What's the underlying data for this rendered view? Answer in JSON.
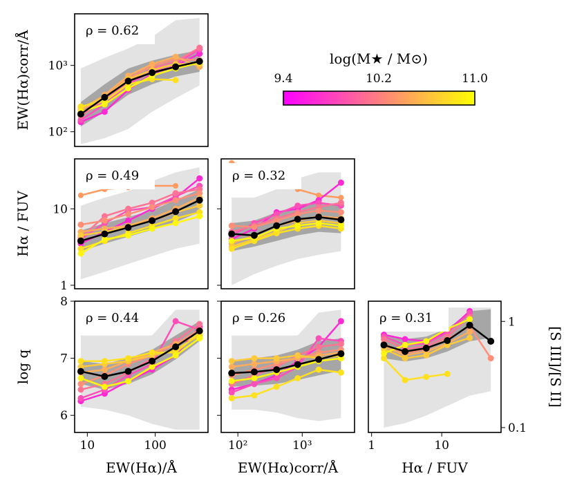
{
  "figure": {
    "colorbar": {
      "title": "log(M★ / M⊙)",
      "ticks": [
        "9.4",
        "10.2",
        "11.0"
      ],
      "range": [
        9.4,
        11.0
      ],
      "colors": [
        "#ff00ff",
        "#ff7f80",
        "#ffff00"
      ]
    },
    "series_colors": [
      "#ff2ad4",
      "#ff4fb8",
      "#ff7394",
      "#ff8f78",
      "#ffad5a",
      "#ffc93c",
      "#ffe01f",
      "#fff510"
    ],
    "median_color": "#000000",
    "outer_band_color": "#e3e3e3",
    "inner_band_color": "#a6a6a6"
  },
  "chart_data": [
    {
      "type": "line",
      "panel": "top-left",
      "rho_label": "ρ = 0.62",
      "xscale": "log",
      "xlim": [
        6.5,
        600
      ],
      "yscale": "log",
      "ylim": [
        60,
        6000
      ],
      "yticks": [
        "10²",
        "10³"
      ],
      "ytick_values": [
        100,
        1000
      ],
      "ylabel": "EW(Hα)corr/Å",
      "x": [
        8,
        18,
        40,
        90,
        200,
        450
      ],
      "median": [
        185,
        330,
        580,
        780,
        950,
        1150
      ],
      "inner_band_low": [
        120,
        200,
        360,
        520,
        680,
        800
      ],
      "inner_band_high": [
        280,
        520,
        900,
        1180,
        1450,
        1700
      ],
      "outer_band_low": [
        65,
        80,
        110,
        200,
        320,
        500
      ],
      "outer_band_high": [
        900,
        1300,
        1800,
        2700,
        4800,
        5200
      ],
      "series": [
        [
          140,
          200,
          430,
          750,
          980,
          1500
        ],
        [
          150,
          260,
          520,
          820,
          1050,
          1750
        ],
        [
          175,
          300,
          560,
          900,
          1150,
          1850
        ],
        [
          190,
          340,
          640,
          980,
          1250,
          1200
        ],
        [
          210,
          360,
          700,
          1050,
          1350,
          950
        ],
        [
          230,
          330,
          620,
          850,
          1050,
          1050
        ],
        [
          240,
          290,
          520,
          620,
          600,
          null
        ],
        [
          200,
          260,
          450,
          700,
          900,
          1100
        ]
      ]
    },
    {
      "type": "line",
      "panel": "middle-left",
      "rho_label": "ρ = 0.49",
      "xscale": "log",
      "xlim": [
        6.5,
        600
      ],
      "yscale": "log",
      "ylim": [
        0.9,
        45
      ],
      "yticks": [
        "1",
        "10"
      ],
      "ytick_values": [
        1,
        10
      ],
      "ylabel": "Hα / FUV",
      "x": [
        8,
        18,
        40,
        90,
        200,
        450
      ],
      "median": [
        3.8,
        4.7,
        5.7,
        7.0,
        9.2,
        13.0
      ],
      "inner_band_low": [
        2.8,
        3.5,
        4.3,
        5.3,
        6.7,
        9.0
      ],
      "inner_band_high": [
        5.2,
        6.5,
        7.8,
        9.6,
        13,
        18
      ],
      "outer_band_low": [
        1.2,
        1.5,
        1.9,
        2.4,
        3.0,
        3.5
      ],
      "outer_band_high": [
        11,
        14,
        17,
        23,
        30,
        35
      ],
      "series": [
        [
          3.5,
          5.0,
          7.0,
          10.0,
          14.0,
          25.0
        ],
        [
          4.0,
          6.5,
          9.5,
          10.5,
          14.5,
          20.0
        ],
        [
          4.2,
          8.0,
          10.0,
          12.0,
          16.0,
          18.0
        ],
        [
          6.2,
          7.0,
          8.5,
          10.5,
          13.0,
          16.0
        ],
        [
          5.0,
          5.5,
          6.0,
          7.5,
          10.0,
          14.0
        ],
        [
          4.5,
          5.0,
          5.8,
          7.0,
          9.0,
          11.0
        ],
        [
          3.0,
          3.8,
          4.8,
          6.0,
          7.5,
          9.0
        ],
        [
          2.6,
          4.0,
          4.5,
          5.5,
          6.5,
          8.0
        ]
      ],
      "outlier_series": [
        15,
        18,
        19,
        20,
        20,
        null
      ]
    },
    {
      "type": "line",
      "panel": "middle-center",
      "rho_label": "ρ = 0.32",
      "xscale": "log",
      "xlim": [
        55,
        6500
      ],
      "yscale": "log",
      "ylim": [
        0.9,
        45
      ],
      "yticks": [],
      "ytick_values": [
        1,
        10
      ],
      "x": [
        80,
        180,
        400,
        850,
        1800,
        4000
      ],
      "median": [
        4.7,
        4.5,
        6.0,
        7.3,
        7.8,
        7.2
      ],
      "inner_band_low": [
        2.8,
        3.2,
        3.8,
        4.5,
        5.0,
        4.8
      ],
      "inner_band_high": [
        6.5,
        7.0,
        9.0,
        11.0,
        12.0,
        11.5
      ],
      "outer_band_low": [
        1.0,
        1.4,
        1.8,
        2.2,
        2.5,
        2.8
      ],
      "outer_band_high": [
        14,
        14,
        18,
        25,
        30,
        30
      ],
      "series": [
        [
          4.0,
          5.5,
          9.0,
          10.0,
          13.0,
          22.0
        ],
        [
          4.5,
          6.5,
          8.5,
          11.0,
          12.0,
          11.0
        ],
        [
          5.0,
          6.0,
          7.5,
          9.0,
          10.5,
          12.0
        ],
        [
          6.0,
          5.8,
          7.0,
          8.5,
          9.5,
          9.0
        ],
        [
          3.5,
          4.5,
          6.0,
          7.0,
          8.0,
          7.5
        ],
        [
          3.2,
          4.0,
          5.0,
          6.5,
          7.0,
          6.5
        ],
        [
          3.0,
          3.8,
          4.8,
          5.5,
          6.0,
          5.5
        ],
        [
          3.8,
          4.2,
          5.5,
          6.0,
          6.5,
          6.0
        ]
      ],
      "outlier_series": [
        40,
        35,
        25,
        18,
        15,
        14
      ]
    },
    {
      "type": "line",
      "panel": "bottom-left",
      "rho_label": "ρ = 0.44",
      "xscale": "log",
      "xlim": [
        6.5,
        600
      ],
      "yscale": "linear",
      "ylim": [
        5.7,
        8.0
      ],
      "yticks": [
        "6",
        "7",
        "8"
      ],
      "ytick_values": [
        6,
        7,
        8
      ],
      "ylabel": "log q",
      "xticks": [
        "10",
        "100"
      ],
      "xtick_values": [
        10,
        100
      ],
      "xlabel": "EW(Hα)/Å",
      "x": [
        8,
        18,
        40,
        90,
        200,
        450
      ],
      "median": [
        6.77,
        6.68,
        6.77,
        6.95,
        7.2,
        7.48
      ],
      "inner_band_low": [
        6.55,
        6.45,
        6.55,
        6.72,
        6.98,
        7.3
      ],
      "inner_band_high": [
        6.95,
        6.9,
        7.0,
        7.15,
        7.4,
        7.65
      ],
      "outer_band_low": [
        6.15,
        6.1,
        6.0,
        5.85,
        5.75,
        5.75
      ],
      "outer_band_high": [
        7.4,
        7.4,
        7.4,
        7.4,
        7.85,
        7.85
      ],
      "series": [
        [
          6.25,
          6.38,
          6.6,
          6.8,
          7.05,
          7.55
        ],
        [
          6.3,
          6.45,
          6.7,
          6.9,
          7.65,
          7.5
        ],
        [
          6.45,
          6.55,
          6.75,
          7.0,
          7.3,
          7.6
        ],
        [
          6.55,
          6.7,
          6.9,
          7.05,
          7.25,
          7.5
        ],
        [
          6.75,
          6.8,
          6.95,
          7.1,
          7.25,
          7.4
        ],
        [
          6.85,
          6.9,
          6.95,
          7.05,
          7.15,
          7.4
        ],
        [
          6.95,
          6.95,
          7.0,
          7.1,
          7.1,
          7.45
        ],
        [
          6.65,
          6.5,
          6.6,
          6.85,
          7.05,
          7.35
        ]
      ]
    },
    {
      "type": "line",
      "panel": "bottom-center",
      "rho_label": "ρ = 0.26",
      "xscale": "log",
      "xlim": [
        55,
        6500
      ],
      "yscale": "linear",
      "ylim": [
        5.7,
        8.0
      ],
      "yticks": [],
      "ytick_values": [
        6,
        7,
        8
      ],
      "xticks": [
        "10²",
        "10³"
      ],
      "xtick_values": [
        100,
        1000
      ],
      "xlabel": "EW(Hα)corr/Å",
      "x": [
        80,
        180,
        400,
        850,
        1800,
        4000
      ],
      "median": [
        6.74,
        6.76,
        6.8,
        6.89,
        6.98,
        7.08
      ],
      "inner_band_low": [
        6.5,
        6.52,
        6.55,
        6.62,
        6.7,
        6.78
      ],
      "inner_band_high": [
        6.95,
        7.0,
        7.05,
        7.15,
        7.3,
        7.35
      ],
      "outer_band_low": [
        6.1,
        6.1,
        6.05,
        5.95,
        5.9,
        5.95
      ],
      "outer_band_high": [
        7.4,
        7.4,
        7.4,
        7.4,
        7.8,
        7.85
      ],
      "series": [
        [
          6.45,
          6.55,
          6.7,
          6.95,
          7.2,
          7.65
        ],
        [
          6.4,
          6.55,
          6.65,
          6.85,
          7.35,
          7.3
        ],
        [
          6.55,
          6.7,
          6.85,
          7.05,
          7.2,
          7.25
        ],
        [
          6.7,
          6.8,
          6.9,
          7.0,
          7.1,
          7.15
        ],
        [
          6.85,
          6.9,
          6.95,
          7.0,
          7.05,
          7.1
        ],
        [
          6.95,
          7.0,
          7.0,
          7.05,
          7.0,
          7.05
        ],
        [
          6.3,
          6.35,
          6.5,
          6.65,
          6.8,
          6.75
        ],
        [
          6.6,
          6.65,
          6.75,
          6.85,
          6.95,
          7.0
        ]
      ]
    },
    {
      "type": "line",
      "panel": "bottom-right",
      "rho_label": "ρ = 0.31",
      "xscale": "log",
      "xlim": [
        0.9,
        70
      ],
      "yscale": "log",
      "ylim": [
        0.09,
        1.55
      ],
      "yticks": [],
      "ytick_values": [],
      "right_yticks": [
        "1",
        "0.1"
      ],
      "right_ytick_values": [
        1,
        0.1
      ],
      "right_ylabel": "[S III]/[S II]",
      "xticks": [
        "1",
        "10"
      ],
      "xtick_values": [
        1,
        10
      ],
      "xlabel": "Hα / FUV",
      "x": [
        1.5,
        3,
        6,
        12,
        25,
        50
      ],
      "median": [
        0.6,
        0.52,
        0.56,
        0.66,
        0.92,
        0.65
      ],
      "inner_band_low": [
        0.45,
        0.42,
        0.45,
        0.52,
        0.65,
        0.7
      ],
      "inner_band_high": [
        0.75,
        0.68,
        0.72,
        0.85,
        1.25,
        1.3
      ],
      "outer_band_low": [
        0.1,
        0.11,
        0.13,
        0.16,
        0.2,
        0.22
      ],
      "outer_band_high": [
        0.95,
        0.95,
        0.95,
        1.35,
        1.35,
        1.35
      ],
      "series": [
        [
          0.75,
          0.68,
          0.65,
          0.8,
          1.25,
          null
        ],
        [
          0.72,
          0.6,
          0.62,
          0.78,
          1.2,
          null
        ],
        [
          0.68,
          0.55,
          0.58,
          0.72,
          1.1,
          null
        ],
        [
          0.62,
          0.5,
          0.55,
          0.68,
          0.9,
          0.45
        ],
        [
          0.58,
          0.48,
          0.52,
          0.62,
          0.8,
          null
        ],
        [
          0.55,
          0.45,
          0.48,
          0.6,
          0.7,
          null
        ],
        [
          0.45,
          0.28,
          0.3,
          0.32,
          null,
          null
        ],
        [
          0.5,
          0.6,
          0.65,
          0.85,
          1.05,
          null
        ]
      ]
    }
  ]
}
